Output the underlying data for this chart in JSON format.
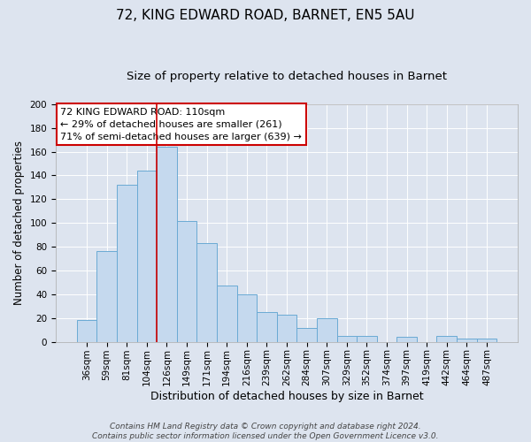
{
  "title": "72, KING EDWARD ROAD, BARNET, EN5 5AU",
  "subtitle": "Size of property relative to detached houses in Barnet",
  "xlabel": "Distribution of detached houses by size in Barnet",
  "ylabel": "Number of detached properties",
  "bar_labels": [
    "36sqm",
    "59sqm",
    "81sqm",
    "104sqm",
    "126sqm",
    "149sqm",
    "171sqm",
    "194sqm",
    "216sqm",
    "239sqm",
    "262sqm",
    "284sqm",
    "307sqm",
    "329sqm",
    "352sqm",
    "374sqm",
    "397sqm",
    "419sqm",
    "442sqm",
    "464sqm",
    "487sqm"
  ],
  "bar_values": [
    18,
    76,
    132,
    144,
    164,
    102,
    83,
    47,
    40,
    25,
    23,
    12,
    20,
    5,
    5,
    0,
    4,
    0,
    5,
    3,
    3
  ],
  "bar_color": "#c5d9ee",
  "bar_edgecolor": "#6aaad4",
  "background_color": "#dde4ef",
  "plot_bg_color": "#dde4ef",
  "vline_color": "#cc0000",
  "vline_x": 3.5,
  "annotation_text_line1": "72 KING EDWARD ROAD: 110sqm",
  "annotation_text_line2": "← 29% of detached houses are smaller (261)",
  "annotation_text_line3": "71% of semi-detached houses are larger (639) →",
  "annotation_box_color": "#ffffff",
  "annotation_edge_color": "#cc0000",
  "ylim": [
    0,
    200
  ],
  "yticks": [
    0,
    20,
    40,
    60,
    80,
    100,
    120,
    140,
    160,
    180,
    200
  ],
  "footer_line1": "Contains HM Land Registry data © Crown copyright and database right 2024.",
  "footer_line2": "Contains public sector information licensed under the Open Government Licence v3.0.",
  "grid_color": "#ffffff",
  "title_fontsize": 11,
  "subtitle_fontsize": 9.5,
  "xlabel_fontsize": 9,
  "ylabel_fontsize": 8.5,
  "tick_fontsize": 7.5,
  "annotation_fontsize": 8,
  "footer_fontsize": 6.5
}
